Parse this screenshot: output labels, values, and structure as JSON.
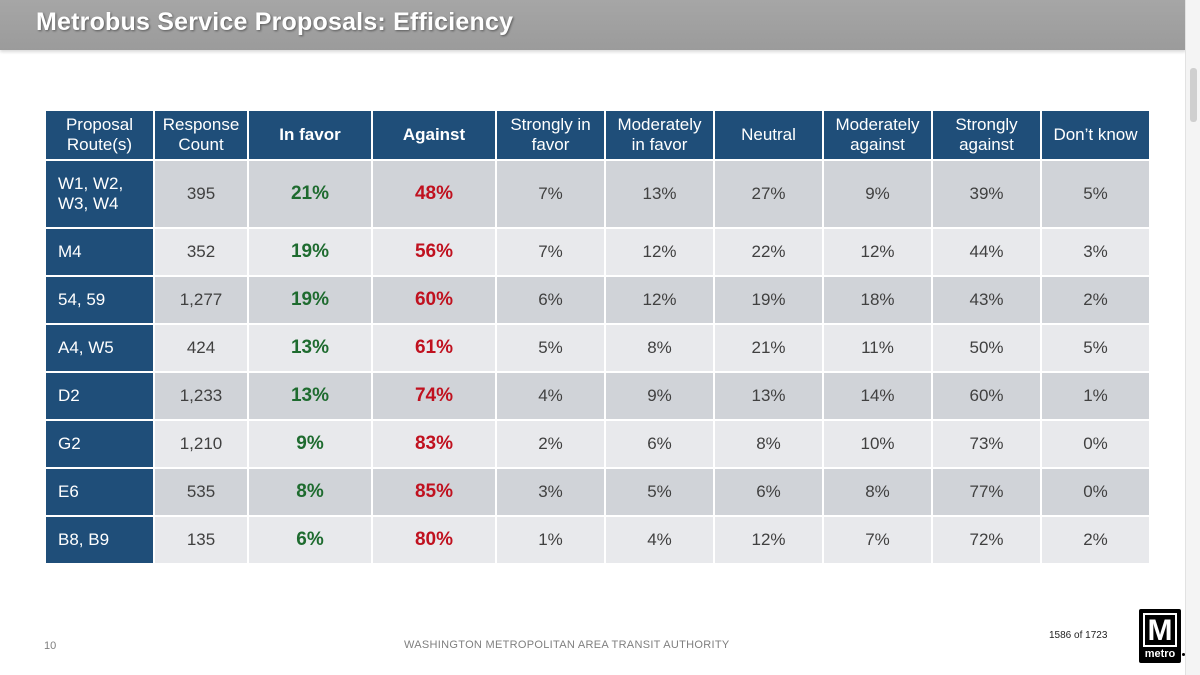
{
  "title": "Metrobus Service Proposals: Efficiency",
  "table": {
    "headers": [
      "Proposal Route(s)",
      "Response Count",
      "In favor",
      "Against",
      "Strongly in favor",
      "Moderately in favor",
      "Neutral",
      "Moderately against",
      "Strongly against",
      "Don’t know"
    ],
    "rows": [
      {
        "route": "W1, W2, W3, W4",
        "count": "395",
        "in_favor": "21%",
        "against": "48%",
        "strongly_favor": "7%",
        "moderately_favor": "13%",
        "neutral": "27%",
        "moderately_against": "9%",
        "strongly_against": "39%",
        "dont_know": "5%"
      },
      {
        "route": "M4",
        "count": "352",
        "in_favor": "19%",
        "against": "56%",
        "strongly_favor": "7%",
        "moderately_favor": "12%",
        "neutral": "22%",
        "moderately_against": "12%",
        "strongly_against": "44%",
        "dont_know": "3%"
      },
      {
        "route": "54, 59",
        "count": "1,277",
        "in_favor": "19%",
        "against": "60%",
        "strongly_favor": "6%",
        "moderately_favor": "12%",
        "neutral": "19%",
        "moderately_against": "18%",
        "strongly_against": "43%",
        "dont_know": "2%"
      },
      {
        "route": "A4, W5",
        "count": "424",
        "in_favor": "13%",
        "against": "61%",
        "strongly_favor": "5%",
        "moderately_favor": "8%",
        "neutral": "21%",
        "moderately_against": "11%",
        "strongly_against": "50%",
        "dont_know": "5%"
      },
      {
        "route": "D2",
        "count": "1,233",
        "in_favor": "13%",
        "against": "74%",
        "strongly_favor": "4%",
        "moderately_favor": "9%",
        "neutral": "13%",
        "moderately_against": "14%",
        "strongly_against": "60%",
        "dont_know": "1%"
      },
      {
        "route": "G2",
        "count": "1,210",
        "in_favor": "9%",
        "against": "83%",
        "strongly_favor": "2%",
        "moderately_favor": "6%",
        "neutral": "8%",
        "moderately_against": "10%",
        "strongly_against": "73%",
        "dont_know": "0%"
      },
      {
        "route": "E6",
        "count": "535",
        "in_favor": "8%",
        "against": "85%",
        "strongly_favor": "3%",
        "moderately_favor": "5%",
        "neutral": "6%",
        "moderately_against": "8%",
        "strongly_against": "77%",
        "dont_know": "0%"
      },
      {
        "route": "B8, B9",
        "count": "135",
        "in_favor": "6%",
        "against": "80%",
        "strongly_favor": "1%",
        "moderately_favor": "4%",
        "neutral": "12%",
        "moderately_against": "7%",
        "strongly_against": "72%",
        "dont_know": "2%"
      }
    ]
  },
  "footer": {
    "page_number": "10",
    "organization": "WASHINGTON METROPOLITAN AREA TRANSIT AUTHORITY",
    "page_count": "1586 of 1723"
  },
  "logo": {
    "letter": "M",
    "word": "metro"
  },
  "colors": {
    "header_blue": "#1f4e79",
    "favor_green": "#1e6b2f",
    "against_red": "#c0111f",
    "row_dark": "#d0d3d8",
    "row_light": "#e8e9ec"
  }
}
